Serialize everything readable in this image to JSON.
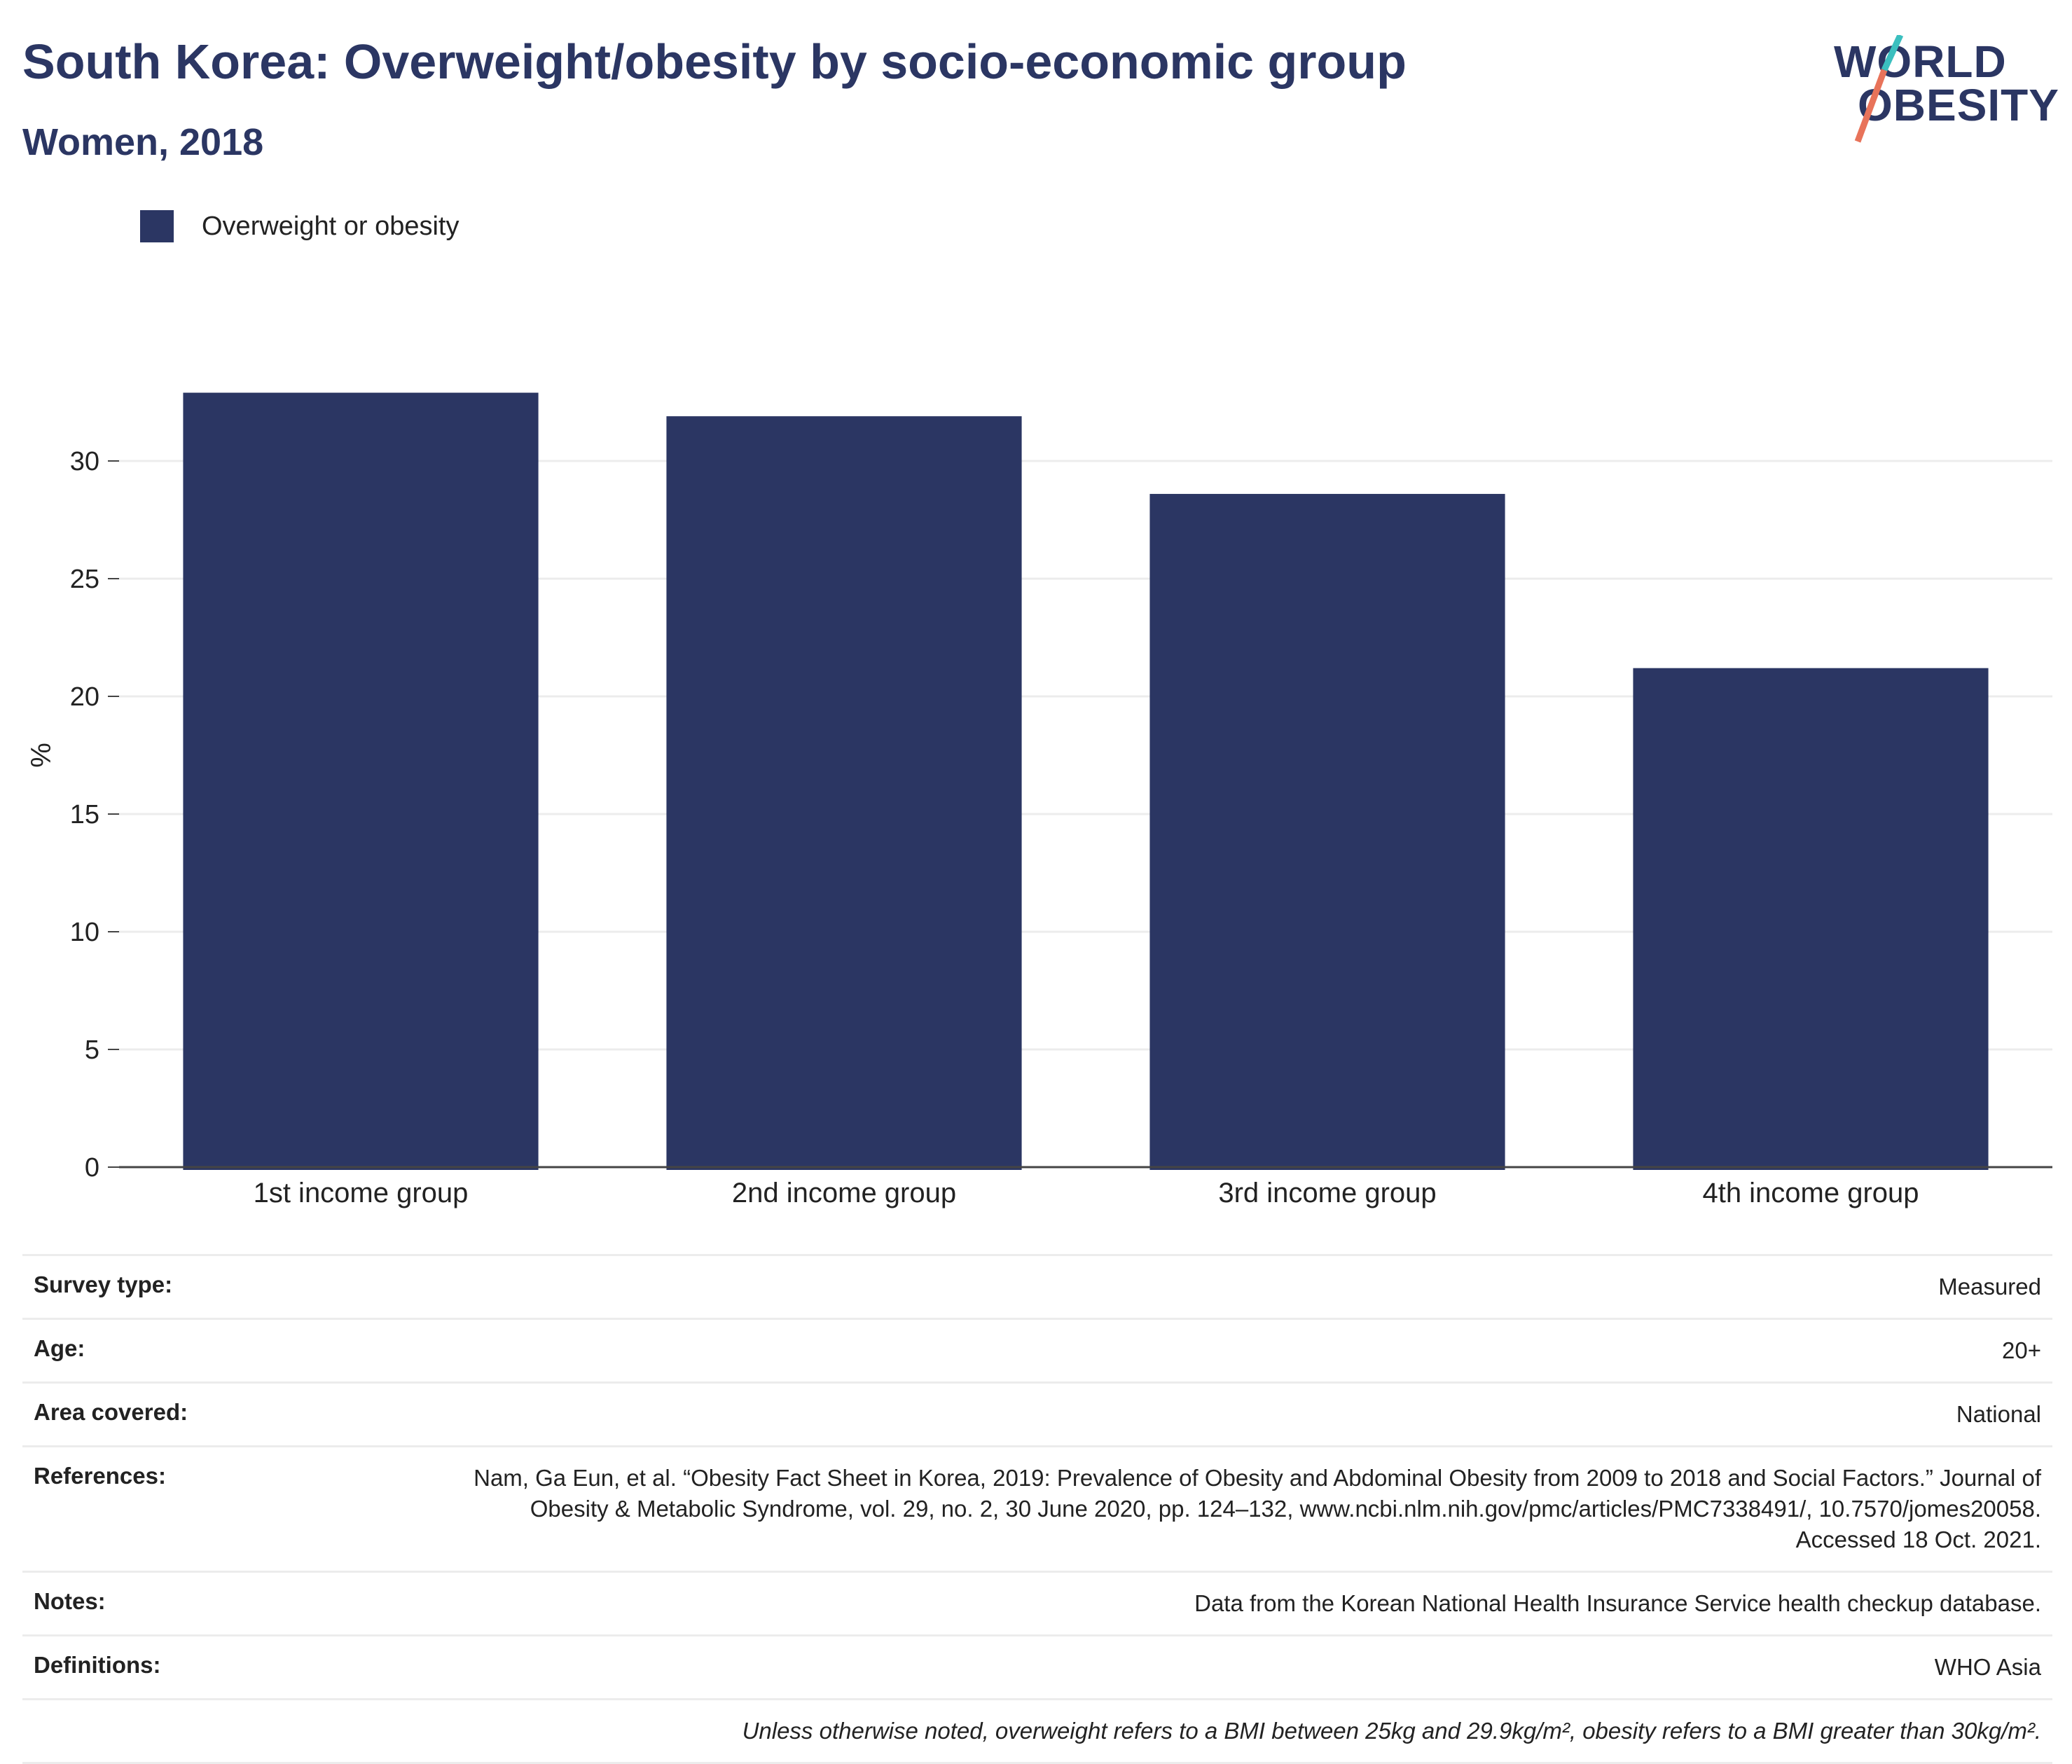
{
  "title": "South Korea: Overweight/obesity by socio-economic group",
  "subtitle": "Women, 2018",
  "logo": {
    "line1": "WORLD",
    "line2": "OBESITY",
    "accent_colors": [
      "#3bbfbf",
      "#e8735a"
    ]
  },
  "legend": {
    "label": "Overweight or obesity",
    "color": "#2b3663"
  },
  "chart_data": {
    "type": "bar",
    "categories": [
      "1st income group",
      "2nd income group",
      "3rd income group",
      "4th income group"
    ],
    "series": [
      {
        "name": "Overweight or obesity",
        "values": [
          32.9,
          31.9,
          28.6,
          21.2
        ],
        "color": "#2b3663"
      }
    ],
    "ylabel": "%",
    "ylim": [
      0,
      35
    ],
    "yticks": [
      0,
      5,
      10,
      15,
      20,
      25,
      30
    ],
    "grid": true,
    "legend_position": "top-left"
  },
  "meta": [
    {
      "key": "Survey type:",
      "value": "Measured"
    },
    {
      "key": "Age:",
      "value": "20+"
    },
    {
      "key": "Area covered:",
      "value": "National"
    },
    {
      "key": "References:",
      "value": "Nam, Ga Eun, et al. “Obesity Fact Sheet in Korea, 2019: Prevalence of Obesity and Abdominal Obesity from 2009 to 2018 and Social Factors.” Journal of Obesity & Metabolic Syndrome, vol. 29, no. 2, 30 June 2020, pp. 124–132, www.ncbi.nlm.nih.gov/pmc/articles/PMC7338491/, 10.7570/jomes20058. Accessed 18 Oct. 2021."
    },
    {
      "key": "Notes:",
      "value": "Data from the Korean National Health Insurance Service health checkup database."
    },
    {
      "key": "Definitions:",
      "value": "WHO Asia"
    },
    {
      "key": "",
      "value": "Unless otherwise noted, overweight refers to a BMI between 25kg and 29.9kg/m², obesity refers to a BMI greater than 30kg/m²."
    }
  ]
}
